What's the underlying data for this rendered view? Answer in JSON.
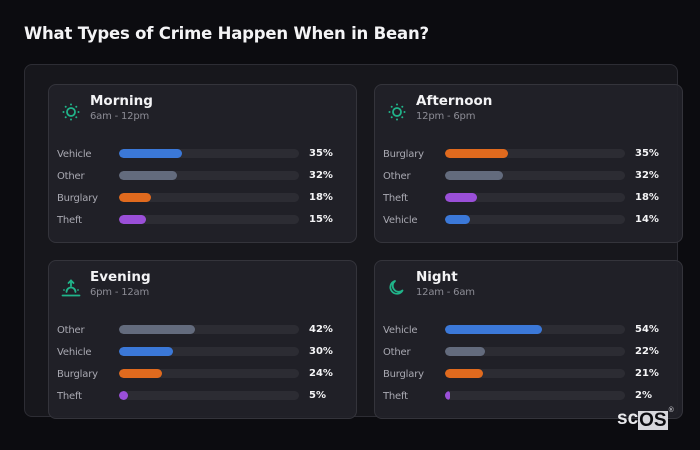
{
  "header": {
    "title": "What Types of Crime Happen When in Bean?"
  },
  "colors": {
    "Vehicle": "#3b78d8",
    "Other": "#636b7d",
    "Burglary": "#e06a1e",
    "Theft": "#9a4fd8",
    "icon_accent": "#20b48a"
  },
  "cards": [
    {
      "title": "Morning",
      "subtitle": "6am - 12pm",
      "icon": "sun-icon",
      "rows": [
        {
          "label": "Vehicle",
          "value": 35,
          "display": "35%"
        },
        {
          "label": "Other",
          "value": 32,
          "display": "32%"
        },
        {
          "label": "Burglary",
          "value": 18,
          "display": "18%"
        },
        {
          "label": "Theft",
          "value": 15,
          "display": "15%"
        }
      ]
    },
    {
      "title": "Afternoon",
      "subtitle": "12pm - 6pm",
      "icon": "sun-icon",
      "rows": [
        {
          "label": "Burglary",
          "value": 35,
          "display": "35%"
        },
        {
          "label": "Other",
          "value": 32,
          "display": "32%"
        },
        {
          "label": "Theft",
          "value": 18,
          "display": "18%"
        },
        {
          "label": "Vehicle",
          "value": 14,
          "display": "14%"
        }
      ]
    },
    {
      "title": "Evening",
      "subtitle": "6pm - 12am",
      "icon": "sunset-icon",
      "rows": [
        {
          "label": "Other",
          "value": 42,
          "display": "42%"
        },
        {
          "label": "Vehicle",
          "value": 30,
          "display": "30%"
        },
        {
          "label": "Burglary",
          "value": 24,
          "display": "24%"
        },
        {
          "label": "Theft",
          "value": 5,
          "display": "5%"
        }
      ]
    },
    {
      "title": "Night",
      "subtitle": "12am - 6am",
      "icon": "moon-icon",
      "rows": [
        {
          "label": "Vehicle",
          "value": 54,
          "display": "54%"
        },
        {
          "label": "Other",
          "value": 22,
          "display": "22%"
        },
        {
          "label": "Burglary",
          "value": 21,
          "display": "21%"
        },
        {
          "label": "Theft",
          "value": 2,
          "display": "2%"
        }
      ]
    }
  ],
  "logo": {
    "sc": "sc",
    "os": "OS",
    "reg": "®"
  },
  "chart_data": [
    {
      "type": "bar",
      "orientation": "horizontal",
      "title": "Morning",
      "subtitle": "6am - 12pm",
      "categories": [
        "Vehicle",
        "Other",
        "Burglary",
        "Theft"
      ],
      "values": [
        35,
        32,
        18,
        15
      ],
      "unit": "%",
      "xlim": [
        0,
        100
      ]
    },
    {
      "type": "bar",
      "orientation": "horizontal",
      "title": "Afternoon",
      "subtitle": "12pm - 6pm",
      "categories": [
        "Burglary",
        "Other",
        "Theft",
        "Vehicle"
      ],
      "values": [
        35,
        32,
        18,
        14
      ],
      "unit": "%",
      "xlim": [
        0,
        100
      ]
    },
    {
      "type": "bar",
      "orientation": "horizontal",
      "title": "Evening",
      "subtitle": "6pm - 12am",
      "categories": [
        "Other",
        "Vehicle",
        "Burglary",
        "Theft"
      ],
      "values": [
        42,
        30,
        24,
        5
      ],
      "unit": "%",
      "xlim": [
        0,
        100
      ]
    },
    {
      "type": "bar",
      "orientation": "horizontal",
      "title": "Night",
      "subtitle": "12am - 6am",
      "categories": [
        "Vehicle",
        "Other",
        "Burglary",
        "Theft"
      ],
      "values": [
        54,
        22,
        21,
        2
      ],
      "unit": "%",
      "xlim": [
        0,
        100
      ]
    }
  ]
}
